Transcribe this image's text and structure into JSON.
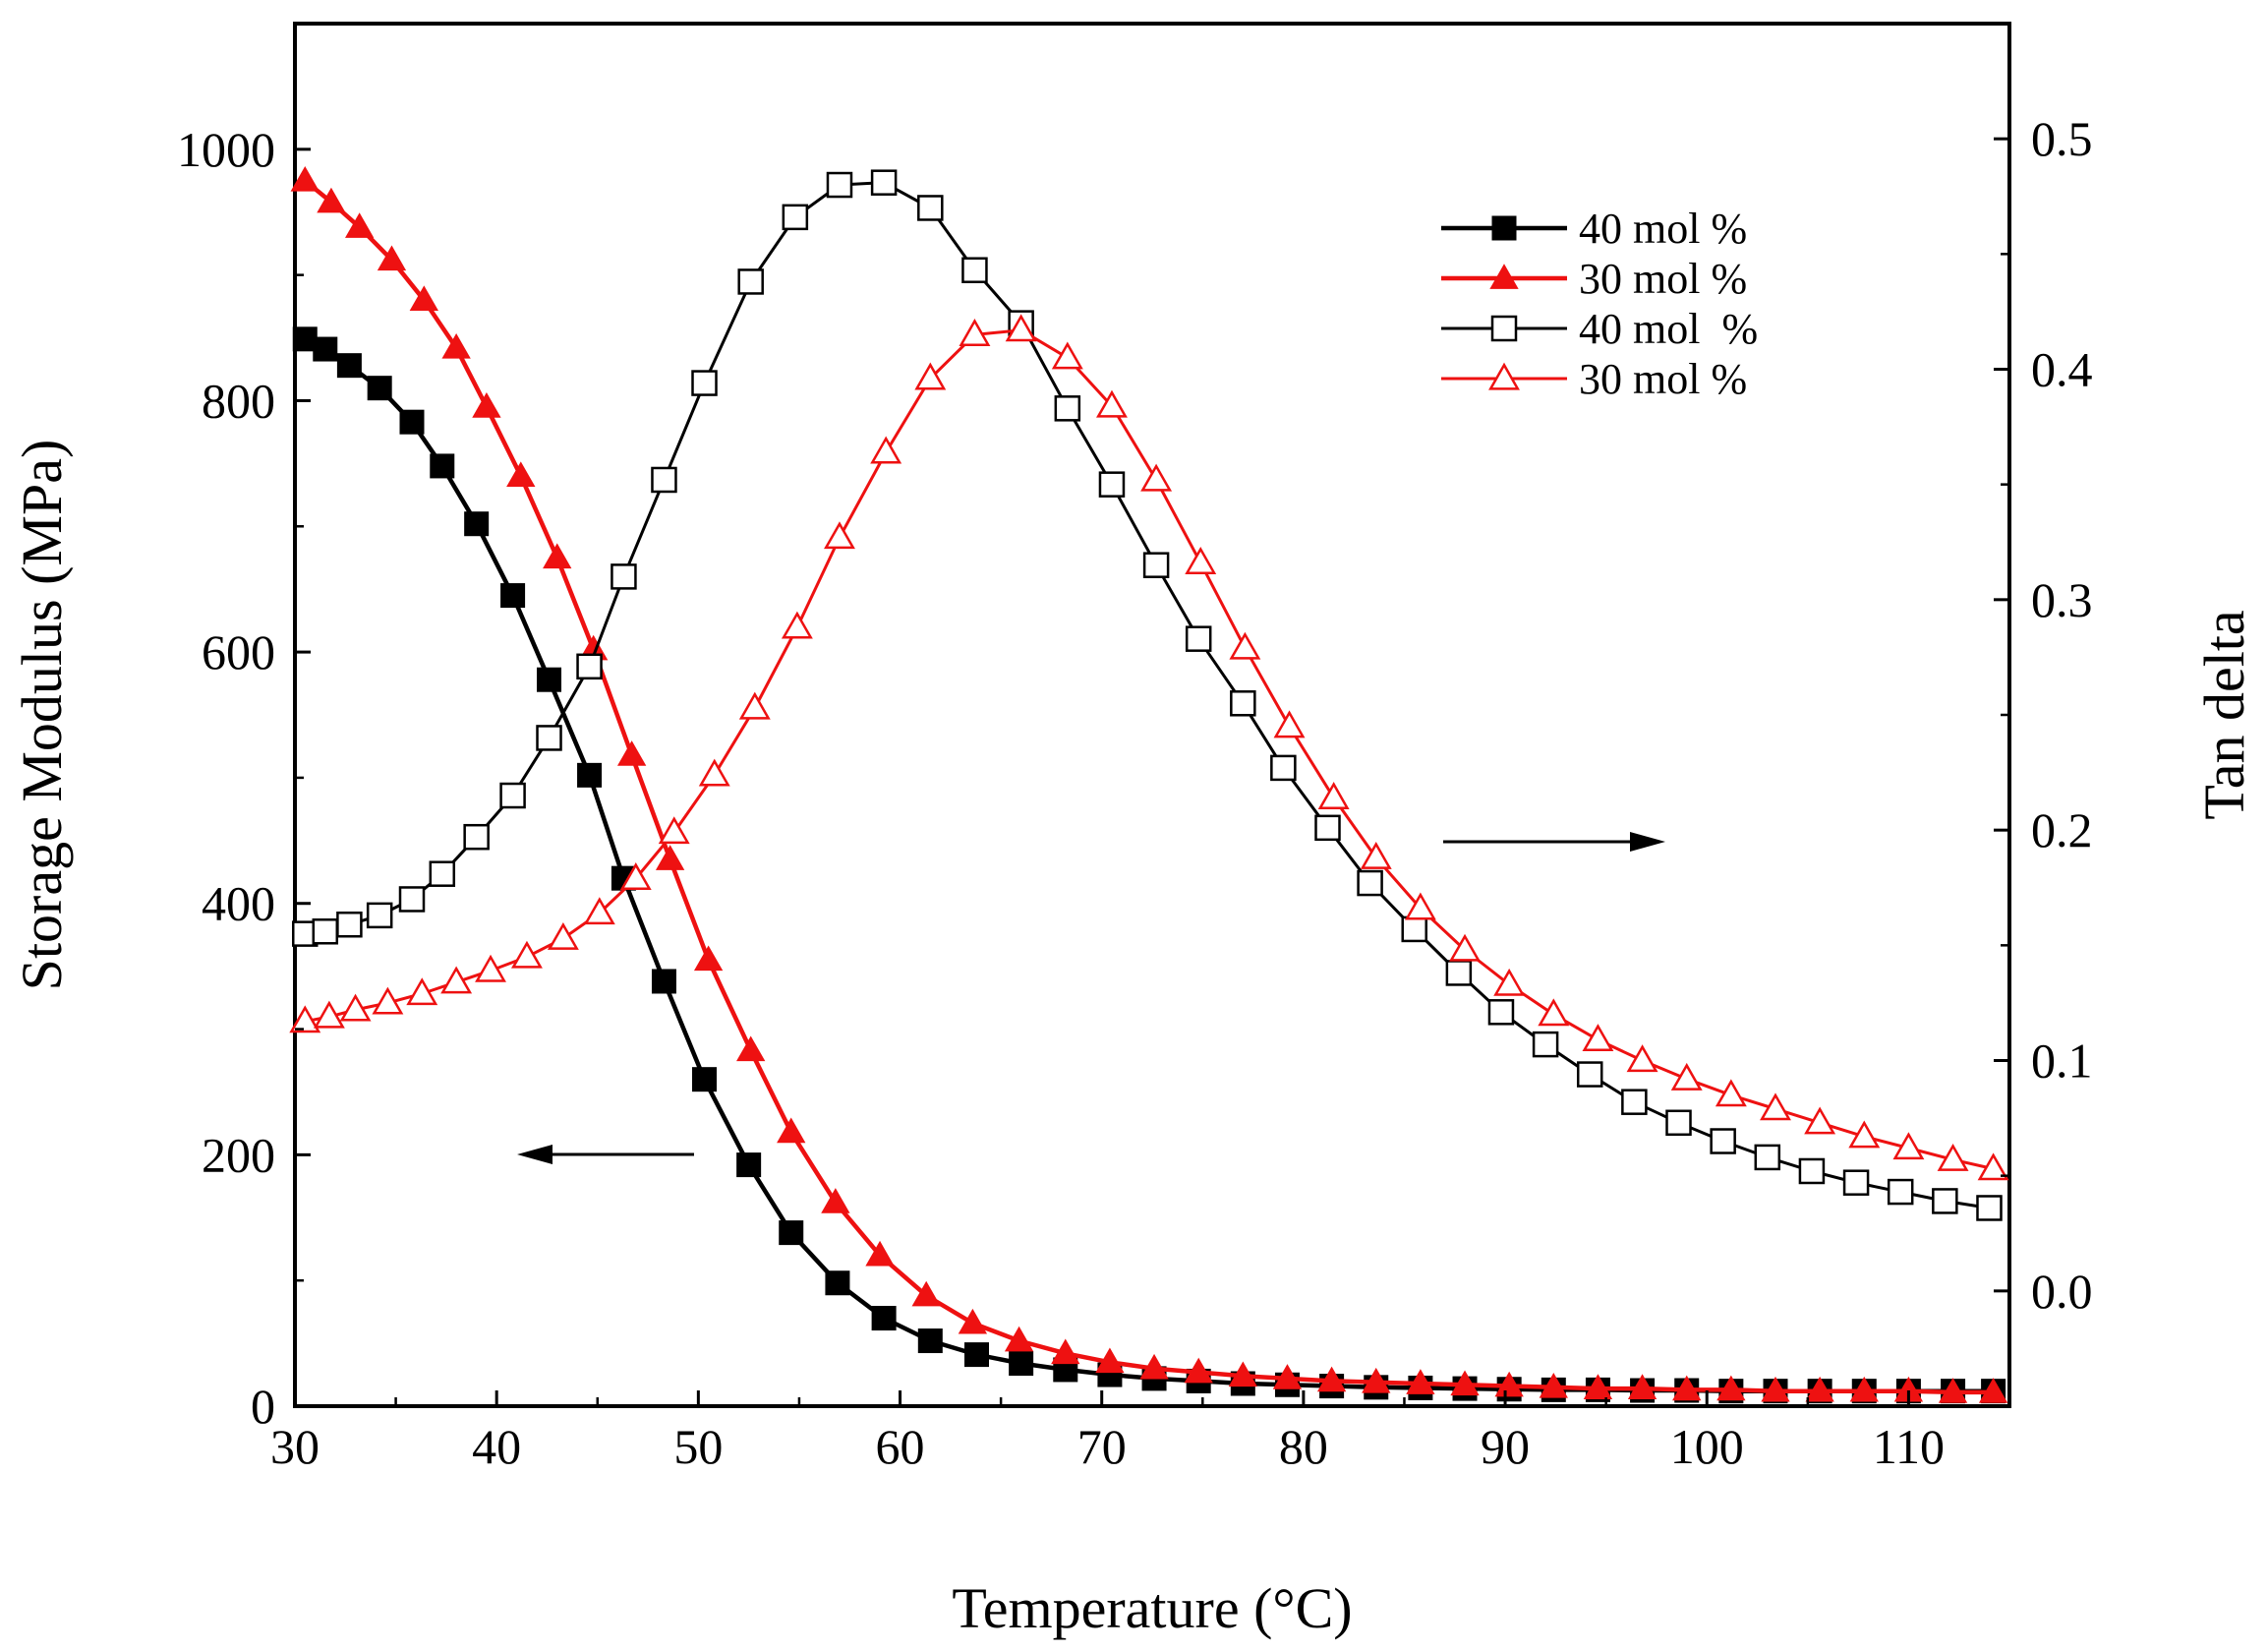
{
  "chart_data": {
    "type": "line",
    "title": "",
    "xlabel": "Temperature (°C)",
    "ylabel_left": "Storage Modulus (MPa)",
    "ylabel_right": "Tan delta",
    "xlim": [
      30,
      115
    ],
    "ylim_left": [
      0,
      1100
    ],
    "ylim_right": [
      -0.05,
      0.55
    ],
    "x_ticks": [
      30,
      40,
      50,
      60,
      70,
      80,
      90,
      100,
      110
    ],
    "y_left_ticks": [
      0,
      200,
      400,
      600,
      800,
      1000
    ],
    "y_right_ticks": [
      "0.0",
      "0.1",
      "0.2",
      "0.3",
      "0.4",
      "0.5"
    ],
    "legend_position": "top-right",
    "series": [
      {
        "name": "40 mol %",
        "axis": "left",
        "color": "#000000",
        "marker": "square-filled",
        "points": [
          [
            30.5,
            849
          ],
          [
            31.5,
            841
          ],
          [
            32.7,
            828
          ],
          [
            34.2,
            810
          ],
          [
            35.8,
            783
          ],
          [
            37.3,
            748
          ],
          [
            39.0,
            702
          ],
          [
            40.8,
            645
          ],
          [
            42.6,
            578
          ],
          [
            44.6,
            502
          ],
          [
            46.3,
            420
          ],
          [
            48.3,
            338
          ],
          [
            50.3,
            260
          ],
          [
            52.5,
            192
          ],
          [
            54.6,
            138
          ],
          [
            56.9,
            98
          ],
          [
            59.2,
            70
          ],
          [
            61.5,
            52
          ],
          [
            63.8,
            41
          ],
          [
            66.0,
            34
          ],
          [
            68.2,
            29
          ],
          [
            70.4,
            25
          ],
          [
            72.6,
            22
          ],
          [
            74.8,
            20
          ],
          [
            77.0,
            18
          ],
          [
            79.2,
            17
          ],
          [
            81.4,
            16
          ],
          [
            83.6,
            15
          ],
          [
            85.8,
            14.5
          ],
          [
            88.0,
            14
          ],
          [
            90.2,
            13.5
          ],
          [
            92.4,
            13
          ],
          [
            94.6,
            13
          ],
          [
            96.8,
            12.5
          ],
          [
            99.0,
            12.5
          ],
          [
            101.2,
            12
          ],
          [
            103.4,
            12
          ],
          [
            105.6,
            12
          ],
          [
            107.8,
            12
          ],
          [
            110.0,
            12
          ],
          [
            112.2,
            12
          ],
          [
            114.2,
            12
          ]
        ]
      },
      {
        "name": "30 mol %",
        "axis": "left",
        "color": "#ee1111",
        "marker": "triangle-filled",
        "points": [
          [
            30.5,
            975
          ],
          [
            31.8,
            958
          ],
          [
            33.2,
            938
          ],
          [
            34.8,
            912
          ],
          [
            36.4,
            880
          ],
          [
            38.0,
            842
          ],
          [
            39.5,
            795
          ],
          [
            41.2,
            740
          ],
          [
            43.0,
            675
          ],
          [
            44.8,
            602
          ],
          [
            46.7,
            518
          ],
          [
            48.6,
            435
          ],
          [
            50.5,
            355
          ],
          [
            52.6,
            283
          ],
          [
            54.6,
            218
          ],
          [
            56.8,
            162
          ],
          [
            59.0,
            120
          ],
          [
            61.3,
            88
          ],
          [
            63.6,
            66
          ],
          [
            65.9,
            52
          ],
          [
            68.2,
            42
          ],
          [
            70.4,
            35
          ],
          [
            72.6,
            30
          ],
          [
            74.8,
            27
          ],
          [
            77.0,
            24
          ],
          [
            79.2,
            22
          ],
          [
            81.4,
            20
          ],
          [
            83.6,
            19
          ],
          [
            85.8,
            18
          ],
          [
            88.0,
            17
          ],
          [
            90.2,
            16
          ],
          [
            92.4,
            15
          ],
          [
            94.6,
            14
          ],
          [
            96.8,
            14
          ],
          [
            99.0,
            13
          ],
          [
            101.2,
            13
          ],
          [
            103.4,
            12
          ],
          [
            105.6,
            12
          ],
          [
            107.8,
            12
          ],
          [
            110.0,
            12
          ],
          [
            112.2,
            11
          ],
          [
            114.2,
            11
          ]
        ]
      },
      {
        "name": "40 mol  %",
        "axis": "right",
        "color": "#000000",
        "marker": "square-open",
        "points": [
          [
            30.5,
            0.155
          ],
          [
            31.5,
            0.156
          ],
          [
            32.7,
            0.159
          ],
          [
            34.2,
            0.163
          ],
          [
            35.8,
            0.17
          ],
          [
            37.3,
            0.181
          ],
          [
            39.0,
            0.197
          ],
          [
            40.8,
            0.215
          ],
          [
            42.6,
            0.24
          ],
          [
            44.6,
            0.271
          ],
          [
            46.3,
            0.31
          ],
          [
            48.3,
            0.352
          ],
          [
            50.3,
            0.394
          ],
          [
            52.6,
            0.438
          ],
          [
            54.8,
            0.466
          ],
          [
            57.0,
            0.48
          ],
          [
            59.2,
            0.481
          ],
          [
            61.5,
            0.47
          ],
          [
            63.7,
            0.443
          ],
          [
            66.0,
            0.42
          ],
          [
            68.3,
            0.383
          ],
          [
            70.5,
            0.35
          ],
          [
            72.7,
            0.315
          ],
          [
            74.8,
            0.283
          ],
          [
            77.0,
            0.255
          ],
          [
            79.0,
            0.227
          ],
          [
            81.2,
            0.201
          ],
          [
            83.3,
            0.177
          ],
          [
            85.5,
            0.157
          ],
          [
            87.7,
            0.138
          ],
          [
            89.8,
            0.121
          ],
          [
            92.0,
            0.107
          ],
          [
            94.2,
            0.094
          ],
          [
            96.4,
            0.082
          ],
          [
            98.6,
            0.073
          ],
          [
            100.8,
            0.065
          ],
          [
            103.0,
            0.058
          ],
          [
            105.2,
            0.052
          ],
          [
            107.4,
            0.047
          ],
          [
            109.6,
            0.043
          ],
          [
            111.8,
            0.039
          ],
          [
            114.0,
            0.036
          ]
        ]
      },
      {
        "name": "30 mol %",
        "axis": "right",
        "color": "#ee1111",
        "marker": "triangle-open",
        "points": [
          [
            30.5,
            0.117
          ],
          [
            31.7,
            0.119
          ],
          [
            33.0,
            0.122
          ],
          [
            34.6,
            0.125
          ],
          [
            36.3,
            0.129
          ],
          [
            38.0,
            0.134
          ],
          [
            39.7,
            0.139
          ],
          [
            41.5,
            0.145
          ],
          [
            43.3,
            0.153
          ],
          [
            45.1,
            0.164
          ],
          [
            46.9,
            0.179
          ],
          [
            48.8,
            0.199
          ],
          [
            50.8,
            0.224
          ],
          [
            52.8,
            0.253
          ],
          [
            54.9,
            0.288
          ],
          [
            57.0,
            0.327
          ],
          [
            59.3,
            0.364
          ],
          [
            61.5,
            0.396
          ],
          [
            63.7,
            0.415
          ],
          [
            66.0,
            0.417
          ],
          [
            68.3,
            0.405
          ],
          [
            70.5,
            0.384
          ],
          [
            72.7,
            0.352
          ],
          [
            74.9,
            0.316
          ],
          [
            77.1,
            0.279
          ],
          [
            79.3,
            0.245
          ],
          [
            81.5,
            0.214
          ],
          [
            83.6,
            0.188
          ],
          [
            85.8,
            0.166
          ],
          [
            88.0,
            0.148
          ],
          [
            90.2,
            0.133
          ],
          [
            92.4,
            0.12
          ],
          [
            94.6,
            0.109
          ],
          [
            96.8,
            0.1
          ],
          [
            99.0,
            0.092
          ],
          [
            101.2,
            0.085
          ],
          [
            103.4,
            0.079
          ],
          [
            105.6,
            0.073
          ],
          [
            107.8,
            0.067
          ],
          [
            110.0,
            0.062
          ],
          [
            112.2,
            0.057
          ],
          [
            114.2,
            0.053
          ]
        ]
      }
    ]
  }
}
